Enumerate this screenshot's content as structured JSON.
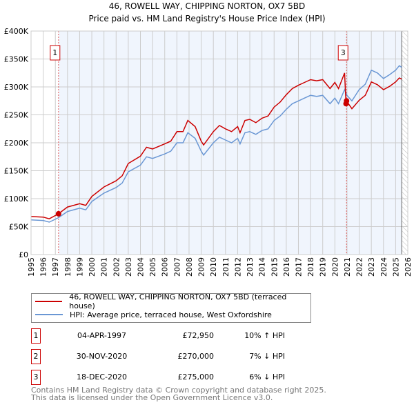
{
  "title": "46, ROWELL WAY, CHIPPING NORTON, OX7 5BD",
  "subtitle": "Price paid vs. HM Land Registry's House Price Index (HPI)",
  "chart_data": {
    "type": "line",
    "xlim": [
      1995,
      2026
    ],
    "ylim": [
      0,
      400000
    ],
    "yticks": [
      0,
      50000,
      100000,
      150000,
      200000,
      250000,
      300000,
      350000,
      400000
    ],
    "ytick_labels": [
      "£0",
      "£50K",
      "£100K",
      "£150K",
      "£200K",
      "£250K",
      "£300K",
      "£350K",
      "£400K"
    ],
    "xticks": [
      1995,
      1996,
      1997,
      1998,
      1999,
      2000,
      2001,
      2002,
      2003,
      2004,
      2005,
      2006,
      2007,
      2008,
      2009,
      2010,
      2011,
      2012,
      2013,
      2014,
      2015,
      2016,
      2017,
      2018,
      2019,
      2020,
      2021,
      2022,
      2023,
      2024,
      2025,
      2026
    ],
    "grid": true,
    "series": [
      {
        "name": "46, ROWELL WAY, CHIPPING NORTON, OX7 5BD (terraced house)",
        "color": "#cc0000",
        "x": [
          1995,
          1996,
          1996.5,
          1997.26,
          1998,
          1999,
          1999.5,
          2000,
          2001,
          2002,
          2002.5,
          2003,
          2004,
          2004.5,
          2005,
          2006,
          2006.5,
          2007,
          2007.5,
          2007.9,
          2008.5,
          2009,
          2009.2,
          2010,
          2010.5,
          2011,
          2011.5,
          2012,
          2012.2,
          2012.6,
          2013,
          2013.5,
          2014,
          2014.5,
          2015,
          2015.5,
          2016,
          2016.5,
          2017,
          2017.5,
          2018,
          2018.5,
          2019,
          2019.6,
          2020,
          2020.3,
          2020.8,
          2020.92,
          2020.96,
          2021.4,
          2022,
          2022.5,
          2023,
          2023.5,
          2024,
          2024.5,
          2025,
          2025.3,
          2025.5
        ],
        "y": [
          68000,
          67000,
          64000,
          72950,
          85000,
          91000,
          88000,
          104000,
          121000,
          132000,
          141000,
          163000,
          176000,
          192000,
          189000,
          198000,
          203000,
          220000,
          220000,
          240000,
          229000,
          203000,
          196000,
          220000,
          231000,
          225000,
          220000,
          229000,
          218000,
          240000,
          242000,
          236000,
          244000,
          248000,
          264000,
          273000,
          286000,
          297000,
          303000,
          308000,
          313000,
          311000,
          313000,
          297000,
          308000,
          297000,
          325000,
          270000,
          275000,
          261000,
          276000,
          285000,
          309000,
          304000,
          295000,
          301000,
          309000,
          316000,
          314000
        ]
      },
      {
        "name": "HPI: Average price, terraced house, West Oxfordshire",
        "color": "#6a97d4",
        "x": [
          1995,
          1996,
          1996.5,
          1997.26,
          1998,
          1999,
          1999.5,
          2000,
          2001,
          2002,
          2002.5,
          2003,
          2004,
          2004.5,
          2005,
          2006,
          2006.5,
          2007,
          2007.5,
          2007.9,
          2008.5,
          2009,
          2009.2,
          2010,
          2010.5,
          2011,
          2011.5,
          2012,
          2012.2,
          2012.6,
          2013,
          2013.5,
          2014,
          2014.5,
          2015,
          2015.5,
          2016,
          2016.5,
          2017,
          2017.5,
          2018,
          2018.5,
          2019,
          2019.6,
          2020,
          2020.3,
          2020.8,
          2021,
          2021.4,
          2022,
          2022.5,
          2023,
          2023.5,
          2024,
          2024.5,
          2025,
          2025.3,
          2025.5
        ],
        "y": [
          62000,
          61000,
          58000,
          66000,
          77000,
          83000,
          80000,
          95000,
          110000,
          120000,
          128000,
          148000,
          160000,
          175000,
          172000,
          180000,
          185000,
          200000,
          200000,
          218000,
          208000,
          185000,
          178000,
          200000,
          210000,
          205000,
          200000,
          208000,
          198000,
          218000,
          220000,
          215000,
          222000,
          225000,
          240000,
          248000,
          260000,
          270000,
          275000,
          280000,
          285000,
          283000,
          285000,
          270000,
          280000,
          270000,
          295000,
          285000,
          275000,
          295000,
          305000,
          330000,
          325000,
          315000,
          322000,
          330000,
          338000,
          335000
        ]
      }
    ],
    "sales": [
      {
        "label": "1",
        "x": 1997.26,
        "y": 72950
      },
      {
        "label": "2",
        "x": 2020.92,
        "y": 270000
      },
      {
        "label": "3",
        "x": 2020.96,
        "y": 275000
      }
    ],
    "annotation_boxes": [
      "1",
      "3"
    ],
    "legend_position": "bottom"
  },
  "legend": {
    "property": "46, ROWELL WAY, CHIPPING NORTON, OX7 5BD (terraced house)",
    "hpi": "HPI: Average price, terraced house, West Oxfordshire"
  },
  "transactions": [
    {
      "num": "1",
      "date": "04-APR-1997",
      "price": "£72,950",
      "hpi": "10% ↑ HPI"
    },
    {
      "num": "2",
      "date": "30-NOV-2020",
      "price": "£270,000",
      "hpi": "7% ↓ HPI"
    },
    {
      "num": "3",
      "date": "18-DEC-2020",
      "price": "£275,000",
      "hpi": "6% ↓ HPI"
    }
  ],
  "footer": {
    "line1": "Contains HM Land Registry data © Crown copyright and database right 2025.",
    "line2": "This data is licensed under the Open Government Licence v3.0."
  }
}
